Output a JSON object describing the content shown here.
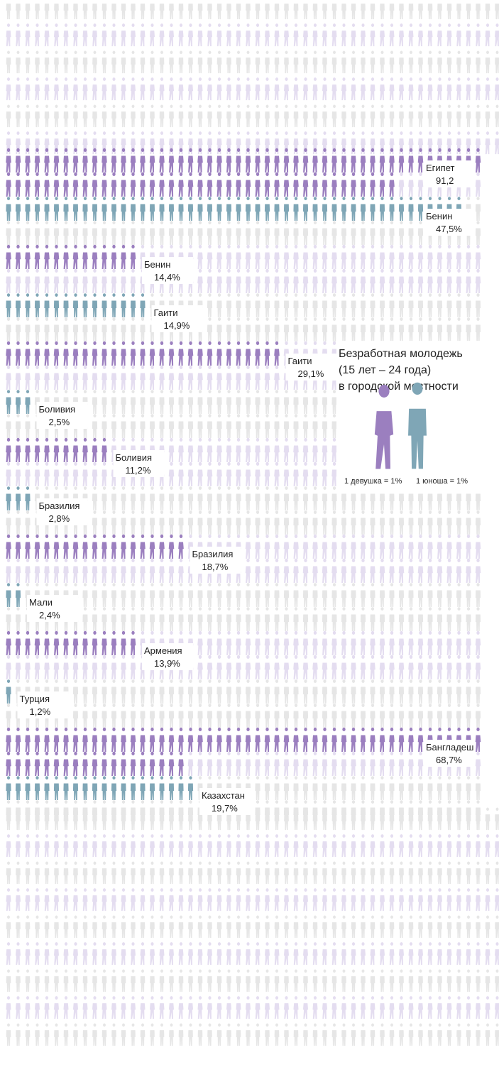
{
  "chart_data": {
    "type": "pictogram",
    "unit": "%",
    "colors": {
      "female": "#9b7fbf",
      "male": "#7fa6b6",
      "female_bg": "#e4ddf0",
      "male_bg": "#e6e6e6"
    },
    "legend": {
      "title_lines": [
        "Безработная молодежь",
        "(15 лет – 24 года)",
        "в городской местности"
      ],
      "female_key": "1 девушка = 1%",
      "male_key": "1 юноша = 1%"
    },
    "series": [
      {
        "country": "Египет",
        "value_label": "91,2",
        "value": 91.2,
        "gender": "female"
      },
      {
        "country": "Бенин",
        "value_label": "47,5%",
        "value": 47.5,
        "gender": "male"
      },
      {
        "country": "Бенин",
        "value_label": "14,4%",
        "value": 14.4,
        "gender": "female"
      },
      {
        "country": "Гаити",
        "value_label": "14,9%",
        "value": 14.9,
        "gender": "male"
      },
      {
        "country": "Гаити",
        "value_label": "29,1%",
        "value": 29.1,
        "gender": "female"
      },
      {
        "country": "Боливия",
        "value_label": "2,5%",
        "value": 2.5,
        "gender": "male"
      },
      {
        "country": "Боливия",
        "value_label": "11,2%",
        "value": 11.2,
        "gender": "female"
      },
      {
        "country": "Бразилия",
        "value_label": "2,8%",
        "value": 2.8,
        "gender": "male"
      },
      {
        "country": "Бразилия",
        "value_label": "18,7%",
        "value": 18.7,
        "gender": "female"
      },
      {
        "country": "Мали",
        "value_label": "2,4%",
        "value": 2.4,
        "gender": "male"
      },
      {
        "country": "Армения",
        "value_label": "13,9%",
        "value": 13.9,
        "gender": "female"
      },
      {
        "country": "Турция",
        "value_label": "1,2%",
        "value": 1.2,
        "gender": "male"
      },
      {
        "country": "Бангладеш",
        "value_label": "68,7%",
        "value": 68.7,
        "gender": "female"
      },
      {
        "country": "Казахстан",
        "value_label": "19,7%",
        "value": 19.7,
        "gender": "male"
      }
    ]
  }
}
